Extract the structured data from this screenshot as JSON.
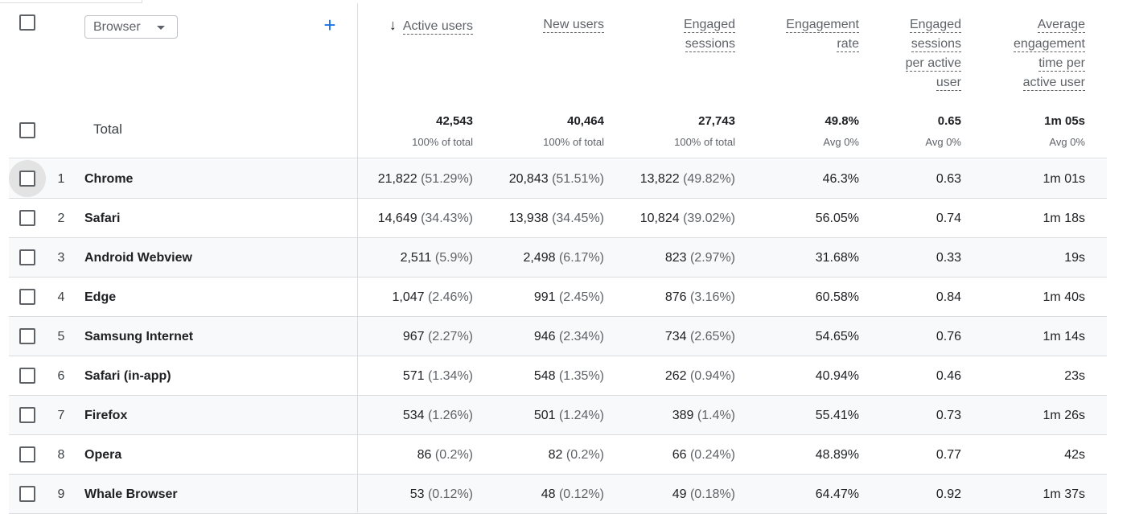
{
  "header": {
    "dimension_label": "Browser",
    "add_dimension_label": "+",
    "sort_arrow": "↓",
    "columns": [
      {
        "lines": [
          "Active users"
        ]
      },
      {
        "lines": [
          "New users"
        ]
      },
      {
        "lines": [
          "Engaged",
          "sessions"
        ]
      },
      {
        "lines": [
          "Engagement",
          "rate"
        ]
      },
      {
        "lines": [
          "Engaged",
          "sessions",
          "per active",
          "user"
        ]
      },
      {
        "lines": [
          "Average",
          "engagement",
          "time per",
          "active user"
        ]
      }
    ]
  },
  "totals": {
    "label": "Total",
    "values": [
      "42,543",
      "40,464",
      "27,743",
      "49.8%",
      "0.65",
      "1m 05s"
    ],
    "subs": [
      "100% of total",
      "100% of total",
      "100% of total",
      "Avg 0%",
      "Avg 0%",
      "Avg 0%"
    ]
  },
  "rows": [
    {
      "rank": "1",
      "name": "Chrome",
      "active": "21,822",
      "active_pct": "(51.29%)",
      "new": "20,843",
      "new_pct": "(51.51%)",
      "engaged": "13,822",
      "engaged_pct": "(49.82%)",
      "rate": "46.3%",
      "per_user": "0.63",
      "time": "1m 01s"
    },
    {
      "rank": "2",
      "name": "Safari",
      "active": "14,649",
      "active_pct": "(34.43%)",
      "new": "13,938",
      "new_pct": "(34.45%)",
      "engaged": "10,824",
      "engaged_pct": "(39.02%)",
      "rate": "56.05%",
      "per_user": "0.74",
      "time": "1m 18s"
    },
    {
      "rank": "3",
      "name": "Android Webview",
      "active": "2,511",
      "active_pct": "(5.9%)",
      "new": "2,498",
      "new_pct": "(6.17%)",
      "engaged": "823",
      "engaged_pct": "(2.97%)",
      "rate": "31.68%",
      "per_user": "0.33",
      "time": "19s"
    },
    {
      "rank": "4",
      "name": "Edge",
      "active": "1,047",
      "active_pct": "(2.46%)",
      "new": "991",
      "new_pct": "(2.45%)",
      "engaged": "876",
      "engaged_pct": "(3.16%)",
      "rate": "60.58%",
      "per_user": "0.84",
      "time": "1m 40s"
    },
    {
      "rank": "5",
      "name": "Samsung Internet",
      "active": "967",
      "active_pct": "(2.27%)",
      "new": "946",
      "new_pct": "(2.34%)",
      "engaged": "734",
      "engaged_pct": "(2.65%)",
      "rate": "54.65%",
      "per_user": "0.76",
      "time": "1m 14s"
    },
    {
      "rank": "6",
      "name": "Safari (in-app)",
      "active": "571",
      "active_pct": "(1.34%)",
      "new": "548",
      "new_pct": "(1.35%)",
      "engaged": "262",
      "engaged_pct": "(0.94%)",
      "rate": "40.94%",
      "per_user": "0.46",
      "time": "23s"
    },
    {
      "rank": "7",
      "name": "Firefox",
      "active": "534",
      "active_pct": "(1.26%)",
      "new": "501",
      "new_pct": "(1.24%)",
      "engaged": "389",
      "engaged_pct": "(1.4%)",
      "rate": "55.41%",
      "per_user": "0.73",
      "time": "1m 26s"
    },
    {
      "rank": "8",
      "name": "Opera",
      "active": "86",
      "active_pct": "(0.2%)",
      "new": "82",
      "new_pct": "(0.2%)",
      "engaged": "66",
      "engaged_pct": "(0.24%)",
      "rate": "48.89%",
      "per_user": "0.77",
      "time": "42s"
    },
    {
      "rank": "9",
      "name": "Whale Browser",
      "active": "53",
      "active_pct": "(0.12%)",
      "new": "48",
      "new_pct": "(0.12%)",
      "engaged": "49",
      "engaged_pct": "(0.18%)",
      "rate": "64.47%",
      "per_user": "0.92",
      "time": "1m 37s"
    }
  ]
}
